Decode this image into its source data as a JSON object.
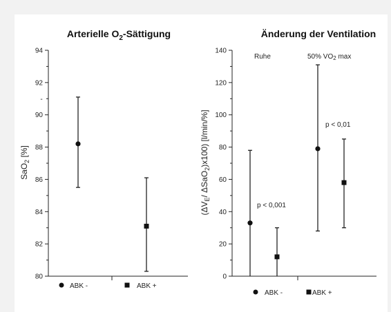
{
  "chart_data": [
    {
      "type": "scatter",
      "title": "Arterielle O2-Sättigung",
      "ylabel": "SaO2 [%]",
      "ylim": [
        80,
        94
      ],
      "yticks": [
        80,
        82,
        84,
        86,
        88,
        90,
        92,
        94
      ],
      "grid": false,
      "legend": [
        "ABK -",
        "ABK +"
      ],
      "points": [
        {
          "name": "ABK -",
          "marker": "circle",
          "y": 88.2,
          "low": 85.5,
          "high": 91.1
        },
        {
          "name": "ABK +",
          "marker": "square",
          "y": 83.1,
          "low": 80.3,
          "high": 86.1
        }
      ]
    },
    {
      "type": "scatter",
      "title": "Änderung der Ventilation",
      "ylabel": "(ΔVE/ ΔSaO2)x100) [l/min/%]",
      "ylim": [
        0,
        140
      ],
      "yticks": [
        0,
        20,
        40,
        60,
        80,
        100,
        120,
        140
      ],
      "grid": false,
      "legend": [
        "ABK -",
        "ABK +"
      ],
      "groups": [
        {
          "label": "Ruhe",
          "pvalue": "p < 0,001"
        },
        {
          "label": "50% VO2 max",
          "pvalue": "p < 0,01"
        }
      ],
      "points": [
        {
          "group": "Ruhe",
          "name": "ABK -",
          "marker": "circle",
          "y": 33,
          "low": 0,
          "high": 78
        },
        {
          "group": "Ruhe",
          "name": "ABK +",
          "marker": "square",
          "y": 12,
          "low": 0,
          "high": 30
        },
        {
          "group": "50% VO2 max",
          "name": "ABK -",
          "marker": "circle",
          "y": 79,
          "low": 28,
          "high": 131
        },
        {
          "group": "50% VO2 max",
          "name": "ABK +",
          "marker": "square",
          "y": 58,
          "low": 30,
          "high": 85
        }
      ]
    }
  ]
}
